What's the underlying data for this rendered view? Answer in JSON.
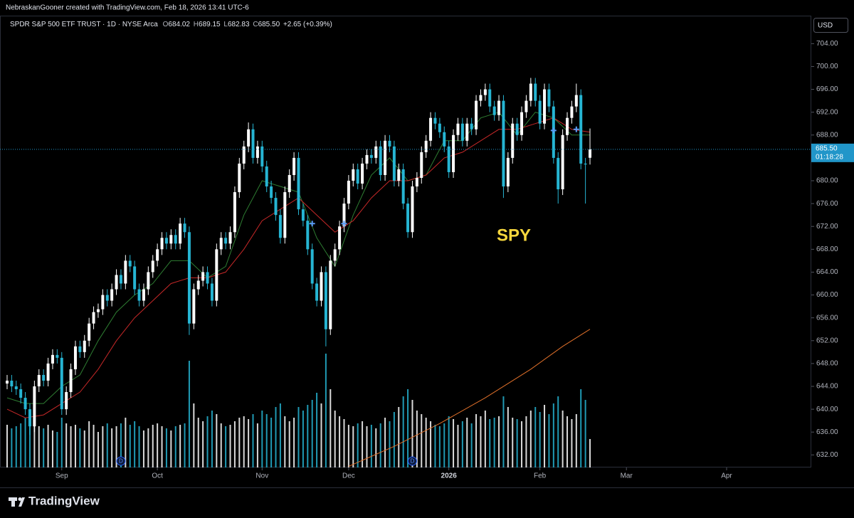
{
  "chart_data": {
    "type": "candlestick",
    "attribution": "NebraskanGooner created with TradingView.com, Feb 18, 2026 13:41 UTC-6",
    "title": "SPDR S&P 500 ETF TRUST · 1D · NYSE Arca",
    "ohlc_labels": [
      "O",
      "H",
      "L",
      "C"
    ],
    "ohlc_values": [
      "684.02",
      "689.15",
      "682.83",
      "685.50"
    ],
    "change": "+2.65 (+0.39%)",
    "annotation": "SPY",
    "currency": "USD",
    "last_price_label": "685.50",
    "countdown": "01:18:28",
    "brand": "TradingView",
    "up_color": "#ffffff",
    "down_color": "#26b5d3",
    "price_line_color": "#2196c9",
    "open": [
      644.5,
      645,
      644,
      643.5,
      642,
      640,
      637,
      644,
      646,
      645,
      648,
      649.5,
      649,
      640,
      643,
      647,
      651,
      650,
      652,
      655,
      657,
      657.5,
      660,
      659,
      661,
      663.5,
      662,
      666,
      665,
      661,
      659,
      661,
      664,
      666,
      668,
      670,
      669,
      670.5,
      669,
      672.5,
      671,
      655,
      661,
      662.5,
      664,
      662,
      659,
      668,
      670,
      669,
      671,
      678,
      683,
      686,
      689,
      684,
      686,
      682.5,
      679,
      677,
      674,
      670,
      678,
      681,
      684,
      675,
      673,
      668,
      662,
      659,
      664,
      654,
      666,
      668,
      672,
      676,
      680,
      682,
      679.5,
      683,
      684.5,
      684,
      686,
      681,
      687,
      686,
      680,
      682,
      676,
      671,
      679,
      680.5,
      685,
      687,
      691,
      690,
      688.5,
      686,
      681.5,
      688,
      690,
      687,
      690,
      689,
      694,
      695,
      696,
      693,
      691.5,
      694,
      679,
      684,
      690,
      688,
      692,
      694,
      697,
      694,
      690,
      696,
      693,
      684,
      678.5,
      688,
      691,
      693,
      695,
      683,
      684.02
    ],
    "high": [
      646,
      646,
      645,
      644.5,
      643,
      641,
      645,
      647,
      647,
      649,
      650.5,
      650.5,
      650,
      644,
      648,
      652,
      652,
      653,
      656,
      658,
      658.5,
      661,
      661,
      662,
      664.5,
      664.5,
      667,
      667,
      666,
      662,
      662,
      665,
      667,
      669,
      671,
      671,
      671.5,
      671.5,
      673.5,
      673.5,
      672,
      662,
      663.5,
      665,
      665,
      663,
      669,
      671,
      671,
      672,
      679,
      684,
      687,
      690.2,
      690,
      687,
      687,
      683.5,
      680,
      678,
      675,
      679,
      682,
      685,
      685,
      676,
      674,
      669,
      663,
      665,
      665,
      667,
      669,
      673,
      677,
      681,
      683,
      683,
      684,
      685.5,
      685.5,
      687,
      687,
      688,
      688,
      687,
      683,
      683,
      677,
      680,
      681.5,
      686,
      688,
      692,
      692,
      691,
      689.5,
      687,
      689,
      691,
      691,
      691,
      691,
      695,
      696,
      697,
      697,
      694,
      695,
      695,
      685,
      691,
      691,
      693,
      695,
      698,
      698,
      695,
      697,
      697,
      694,
      685,
      689,
      692,
      694,
      697,
      696,
      684,
      689.15
    ],
    "low": [
      643.5,
      643,
      642.5,
      641,
      639,
      635.5,
      636,
      643,
      644,
      644,
      647,
      648,
      639,
      639,
      642,
      646,
      649,
      649,
      651,
      654,
      656,
      656.5,
      658,
      658,
      660,
      661,
      661,
      664,
      660,
      658,
      658,
      660,
      663,
      665,
      667,
      668,
      668,
      668,
      668,
      670,
      653,
      654,
      660,
      661.5,
      661,
      658,
      658,
      667,
      668,
      668,
      670,
      677,
      682,
      685,
      683,
      683,
      681.5,
      678,
      676,
      673,
      669,
      669,
      677,
      680,
      674,
      672,
      667,
      661,
      658,
      658,
      651,
      653,
      665,
      667,
      671,
      675,
      679,
      678.5,
      678.5,
      682,
      683,
      683,
      680,
      680,
      685,
      679,
      679,
      675,
      670,
      670,
      678,
      679.5,
      684,
      686,
      689,
      687.5,
      685,
      680.5,
      680.5,
      687,
      686,
      686,
      688,
      688,
      693,
      694,
      692,
      690.5,
      690.5,
      677,
      678,
      683,
      687,
      687,
      691,
      693,
      693,
      689,
      689,
      692,
      683,
      676,
      677.5,
      687,
      690,
      692,
      682,
      676,
      682.83
    ],
    "close": [
      645,
      644,
      643.5,
      642,
      640,
      637,
      644,
      646,
      645,
      648,
      649.5,
      649,
      640,
      643,
      647,
      651,
      650,
      652,
      655,
      657,
      657.5,
      660,
      659,
      661,
      663.5,
      662,
      666,
      665,
      661,
      659,
      661,
      664,
      666,
      668,
      670,
      669,
      670.5,
      669,
      672.5,
      671,
      655,
      661,
      662.5,
      664,
      662,
      659,
      668,
      670,
      669,
      671,
      678,
      683,
      686,
      689,
      684,
      686,
      682.5,
      679,
      677,
      674,
      670,
      678,
      681,
      684,
      675,
      673,
      668,
      662,
      659,
      664,
      654,
      666,
      668,
      672,
      676,
      680,
      682,
      679.5,
      683,
      684.5,
      684,
      686,
      681,
      687,
      686,
      680,
      682,
      676,
      671,
      679,
      680.5,
      685,
      687,
      691,
      690,
      688.5,
      686,
      681.5,
      688,
      690,
      687,
      690,
      689,
      694,
      695,
      696,
      693,
      691.5,
      694,
      679,
      684,
      690,
      688,
      692,
      694,
      697,
      694,
      690,
      696,
      693,
      684,
      678.5,
      688,
      691,
      693,
      695,
      683,
      682.85,
      685.5
    ],
    "volume": [
      60,
      55,
      58,
      62,
      70,
      75,
      65,
      58,
      55,
      60,
      52,
      50,
      70,
      62,
      58,
      60,
      55,
      52,
      65,
      60,
      50,
      58,
      62,
      55,
      58,
      62,
      70,
      60,
      65,
      58,
      52,
      55,
      60,
      62,
      58,
      55,
      52,
      58,
      60,
      62,
      150,
      90,
      70,
      65,
      72,
      80,
      75,
      62,
      58,
      60,
      65,
      70,
      72,
      68,
      75,
      62,
      80,
      75,
      70,
      85,
      90,
      72,
      65,
      70,
      85,
      80,
      88,
      95,
      105,
      90,
      160,
      110,
      80,
      72,
      68,
      60,
      58,
      62,
      65,
      58,
      60,
      55,
      62,
      70,
      65,
      78,
      85,
      100,
      110,
      95,
      80,
      75,
      70,
      65,
      60,
      58,
      62,
      72,
      68,
      60,
      65,
      70,
      62,
      75,
      72,
      80,
      68,
      70,
      72,
      100,
      85,
      70,
      68,
      65,
      72,
      80,
      85,
      78,
      88,
      75,
      90,
      100,
      80,
      72,
      68,
      75,
      110,
      95,
      40
    ],
    "series": [
      {
        "color": "#2e7d32",
        "x": [
          0,
          4,
          8,
          12,
          16,
          20,
          24,
          28,
          32,
          36,
          40,
          44,
          48,
          52,
          56,
          60,
          64,
          68,
          72,
          76,
          80,
          84,
          88,
          92,
          96,
          100,
          104,
          108,
          112,
          116,
          120,
          124,
          128
        ],
        "values": [
          642,
          641,
          641,
          644,
          646,
          652,
          657,
          660,
          662,
          666,
          666,
          663,
          665,
          674,
          680,
          679,
          678,
          670,
          665,
          674,
          681,
          684,
          680,
          681,
          687,
          687,
          691,
          692,
          688,
          692,
          691,
          688,
          688
        ]
      },
      {
        "color": "#c62828",
        "x": [
          0,
          4,
          8,
          12,
          16,
          20,
          24,
          28,
          32,
          36,
          40,
          44,
          48,
          52,
          56,
          60,
          64,
          68,
          72,
          76,
          80,
          84,
          88,
          92,
          96,
          100,
          104,
          108,
          112,
          116,
          120,
          124,
          128
        ],
        "values": [
          640,
          638.5,
          639,
          641,
          643,
          647,
          652,
          656,
          659,
          662,
          663,
          663,
          664,
          668,
          673,
          675,
          677,
          674,
          671,
          673,
          677,
          680,
          680,
          681,
          684,
          685,
          687,
          689,
          689,
          690,
          691,
          689,
          688.5
        ]
      },
      {
        "color": "#e0702a",
        "x": [
          75,
          85,
          95,
          105,
          115,
          122,
          128
        ],
        "values": [
          630,
          633.5,
          637.5,
          642,
          647,
          651,
          654
        ]
      }
    ],
    "cross_markers": {
      "color": "#5b9cf6",
      "x": [
        67,
        74,
        120,
        125
      ],
      "values": [
        672.5,
        672.5,
        688.8,
        689
      ]
    },
    "dividends": {
      "color": "#2962ff",
      "label": "D",
      "x": [
        25,
        89
      ]
    },
    "xlim": [
      -1.56,
      176.6
    ],
    "xticks": [
      {
        "value": 12,
        "label": "Sep"
      },
      {
        "value": 33,
        "label": "Oct"
      },
      {
        "value": 56,
        "label": "Nov"
      },
      {
        "value": 75,
        "label": "Dec"
      },
      {
        "value": 97,
        "label": "2026"
      },
      {
        "value": 117,
        "label": "Feb"
      },
      {
        "value": 136,
        "label": "Mar"
      },
      {
        "value": 158,
        "label": "Apr"
      }
    ],
    "ylim": [
      629.8,
      708.9
    ],
    "yticks": [
      {
        "value": 632,
        "label": "632.00"
      },
      {
        "value": 636,
        "label": "636.00"
      },
      {
        "value": 640,
        "label": "640.00"
      },
      {
        "value": 644,
        "label": "644.00"
      },
      {
        "value": 648,
        "label": "648.00"
      },
      {
        "value": 652,
        "label": "652.00"
      },
      {
        "value": 656,
        "label": "656.00"
      },
      {
        "value": 660,
        "label": "660.00"
      },
      {
        "value": 664,
        "label": "664.00"
      },
      {
        "value": 668,
        "label": "668.00"
      },
      {
        "value": 672,
        "label": "672.00"
      },
      {
        "value": 676,
        "label": "676.00"
      },
      {
        "value": 680,
        "label": "680.00"
      },
      {
        "value": 684,
        "label": "684.00"
      },
      {
        "value": 688,
        "label": "688.00"
      },
      {
        "value": 692,
        "label": "692.00"
      },
      {
        "value": 696,
        "label": "696.00"
      },
      {
        "value": 700,
        "label": "700.00"
      },
      {
        "value": 704,
        "label": "704.00"
      }
    ]
  }
}
